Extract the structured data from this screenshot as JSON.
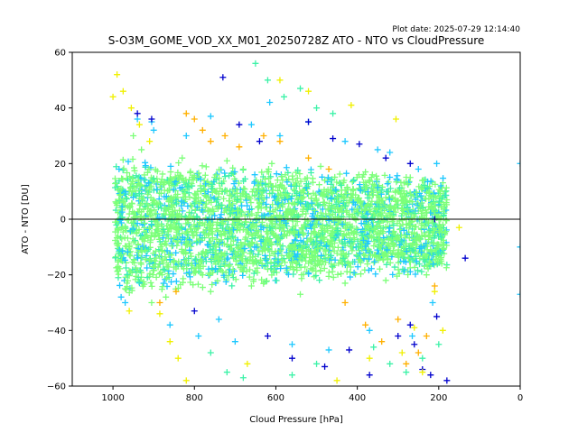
{
  "chart_data": {
    "type": "scatter",
    "title": "S-O3M_GOME_VOD_XX_M01_20250728Z ATO - NTO vs CloudPressure",
    "subtitle": "Plot date: 2025-07-29 12:14:40",
    "xlabel": "Cloud Pressure [hPa]",
    "ylabel": "ATO - NTO [DU]",
    "xlim": [
      1100,
      0
    ],
    "ylim": [
      -60,
      60
    ],
    "xticks": [
      1000,
      800,
      600,
      400,
      200,
      0
    ],
    "yticks": [
      -60,
      -40,
      -20,
      0,
      20,
      40,
      60
    ],
    "xtick_labels": [
      "1000",
      "800",
      "600",
      "400",
      "200",
      "0"
    ],
    "ytick_labels": [
      "−60",
      "−40",
      "−20",
      "0",
      "20",
      "40",
      "60"
    ],
    "reference_line_y": 0,
    "marker": "plus",
    "grid": false,
    "colors": {
      "core": "#7cff79",
      "mid": "#3cf2a8",
      "cyan": "#1ec8ff",
      "blue": "#1e5aff",
      "navy": "#0000cd",
      "yellow": "#f0f000",
      "orange": "#ffb000",
      "line": "#000000"
    },
    "series": [
      {
        "color_key": "core",
        "description_points": [
          [
            990,
            5
          ],
          [
            960,
            -10
          ],
          [
            940,
            12
          ],
          [
            900,
            0
          ],
          [
            880,
            -15
          ],
          [
            850,
            8
          ],
          [
            820,
            -5
          ],
          [
            800,
            15
          ],
          [
            780,
            -20
          ],
          [
            760,
            3
          ],
          [
            740,
            -8
          ],
          [
            720,
            10
          ],
          [
            700,
            -12
          ],
          [
            680,
            18
          ],
          [
            660,
            -3
          ],
          [
            640,
            6
          ],
          [
            620,
            -18
          ],
          [
            600,
            12
          ],
          [
            580,
            -6
          ],
          [
            560,
            2
          ],
          [
            540,
            -14
          ],
          [
            520,
            9
          ],
          [
            500,
            -2
          ],
          [
            480,
            14
          ],
          [
            460,
            -10
          ],
          [
            440,
            4
          ],
          [
            420,
            -16
          ],
          [
            400,
            7
          ],
          [
            380,
            -4
          ],
          [
            360,
            11
          ],
          [
            340,
            -9
          ],
          [
            320,
            2
          ],
          [
            300,
            -13
          ],
          [
            280,
            6
          ],
          [
            260,
            -7
          ],
          [
            240,
            3
          ],
          [
            220,
            -11
          ],
          [
            200,
            1
          ],
          [
            185,
            -5
          ],
          [
            970,
            -25
          ],
          [
            930,
            25
          ],
          [
            870,
            -28
          ],
          [
            830,
            22
          ],
          [
            760,
            -26
          ],
          [
            720,
            21
          ],
          [
            660,
            -24
          ],
          [
            610,
            20
          ],
          [
            540,
            -27
          ],
          [
            490,
            19
          ],
          [
            430,
            -23
          ],
          [
            380,
            17
          ],
          [
            330,
            -22
          ],
          [
            270,
            15
          ],
          [
            230,
            -20
          ],
          [
            950,
            30
          ],
          [
            905,
            -30
          ]
        ]
      },
      {
        "color_key": "cyan",
        "description_points": [
          [
            985,
            18
          ],
          [
            970,
            -30
          ],
          [
            940,
            36
          ],
          [
            905,
            35
          ],
          [
            860,
            -38
          ],
          [
            820,
            30
          ],
          [
            790,
            -42
          ],
          [
            760,
            37
          ],
          [
            700,
            -44
          ],
          [
            660,
            34
          ],
          [
            615,
            42
          ],
          [
            560,
            -45
          ],
          [
            520,
            35
          ],
          [
            470,
            -47
          ],
          [
            430,
            28
          ],
          [
            370,
            -40
          ],
          [
            320,
            24
          ],
          [
            265,
            -42
          ],
          [
            215,
            -30
          ],
          [
            205,
            20
          ],
          [
            980,
            -28
          ],
          [
            900,
            32
          ],
          [
            740,
            -36
          ],
          [
            590,
            30
          ],
          [
            350,
            25
          ],
          [
            250,
            18
          ],
          [
            195,
            12
          ],
          [
            0,
            20
          ],
          [
            0,
            -10
          ],
          [
            0,
            -27
          ]
        ]
      },
      {
        "color_key": "navy",
        "description_points": [
          [
            940,
            38
          ],
          [
            905,
            36
          ],
          [
            730,
            51
          ],
          [
            690,
            34
          ],
          [
            640,
            28
          ],
          [
            520,
            35
          ],
          [
            460,
            29
          ],
          [
            395,
            27
          ],
          [
            330,
            22
          ],
          [
            270,
            20
          ],
          [
            210,
            0
          ],
          [
            135,
            -14
          ],
          [
            800,
            -33
          ],
          [
            620,
            -42
          ],
          [
            560,
            -50
          ],
          [
            480,
            -53
          ],
          [
            420,
            -47
          ],
          [
            370,
            -56
          ],
          [
            300,
            -42
          ],
          [
            260,
            -45
          ],
          [
            220,
            -56
          ],
          [
            240,
            -54
          ],
          [
            180,
            -58
          ],
          [
            270,
            -38
          ],
          [
            205,
            -35
          ]
        ]
      },
      {
        "color_key": "yellow",
        "description_points": [
          [
            990,
            52
          ],
          [
            975,
            46
          ],
          [
            955,
            40
          ],
          [
            935,
            34
          ],
          [
            910,
            28
          ],
          [
            885,
            -34
          ],
          [
            860,
            -44
          ],
          [
            840,
            -50
          ],
          [
            820,
            -58
          ],
          [
            670,
            -52
          ],
          [
            590,
            50
          ],
          [
            520,
            46
          ],
          [
            450,
            -58
          ],
          [
            415,
            41
          ],
          [
            370,
            -50
          ],
          [
            305,
            36
          ],
          [
            290,
            -48
          ],
          [
            260,
            -39
          ],
          [
            240,
            -55
          ],
          [
            210,
            -26
          ],
          [
            190,
            -40
          ],
          [
            150,
            -3
          ],
          [
            960,
            -33
          ],
          [
            1000,
            44
          ]
        ]
      },
      {
        "color_key": "orange",
        "description_points": [
          [
            820,
            38
          ],
          [
            800,
            36
          ],
          [
            780,
            32
          ],
          [
            760,
            28
          ],
          [
            725,
            30
          ],
          [
            690,
            26
          ],
          [
            630,
            30
          ],
          [
            590,
            28
          ],
          [
            520,
            22
          ],
          [
            470,
            18
          ],
          [
            430,
            -30
          ],
          [
            380,
            -38
          ],
          [
            340,
            -44
          ],
          [
            300,
            -36
          ],
          [
            280,
            -52
          ],
          [
            250,
            -48
          ],
          [
            230,
            -42
          ],
          [
            210,
            -24
          ],
          [
            885,
            -30
          ],
          [
            845,
            -26
          ]
        ]
      },
      {
        "color_key": "mid",
        "description_points": [
          [
            650,
            56
          ],
          [
            620,
            50
          ],
          [
            580,
            44
          ],
          [
            540,
            47
          ],
          [
            500,
            40
          ],
          [
            460,
            38
          ],
          [
            360,
            -46
          ],
          [
            320,
            -52
          ],
          [
            280,
            -55
          ],
          [
            240,
            -50
          ],
          [
            200,
            -45
          ],
          [
            760,
            -48
          ],
          [
            720,
            -55
          ],
          [
            680,
            -57
          ],
          [
            560,
            -56
          ],
          [
            500,
            -52
          ]
        ]
      }
    ],
    "core_band": {
      "x_range": [
        995,
        180
      ],
      "y_center": -2,
      "half_width_at_1000": 22,
      "half_width_at_200": 16,
      "color_key": "core"
    }
  }
}
